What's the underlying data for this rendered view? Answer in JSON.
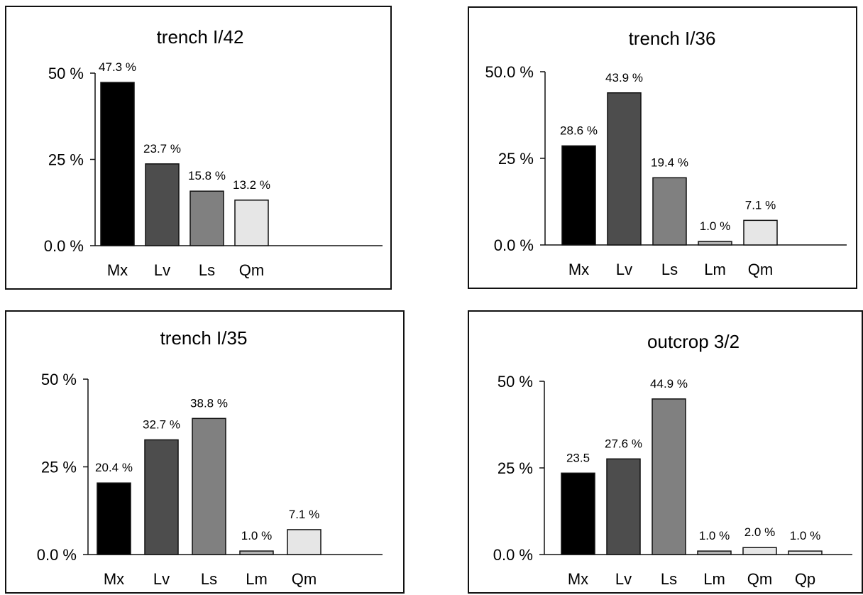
{
  "chart_data": [
    {
      "type": "bar",
      "title": "trench I/42",
      "categories": [
        "Mx",
        "Lv",
        "Ls",
        "Qm"
      ],
      "values": [
        47.3,
        23.7,
        15.8,
        13.2
      ],
      "value_labels": [
        "47.3 %",
        "23.7 %",
        "15.8 %",
        "13.2 %"
      ],
      "colors": [
        "#000000",
        "#4d4d4d",
        "#808080",
        "#e6e6e6"
      ],
      "yticks": [
        {
          "value": 0,
          "label": "0.0 %"
        },
        {
          "value": 25,
          "label": "25 %"
        },
        {
          "value": 50,
          "label": "50 %"
        }
      ],
      "ylim": [
        0,
        50
      ],
      "xlabel": "",
      "ylabel": "",
      "grid": false,
      "legend": "none"
    },
    {
      "type": "bar",
      "title": "trench I/36",
      "categories": [
        "Mx",
        "Lv",
        "Ls",
        "Lm",
        "Qm"
      ],
      "values": [
        28.6,
        43.9,
        19.4,
        1.0,
        7.1
      ],
      "value_labels": [
        "28.6 %",
        "43.9 %",
        "19.4 %",
        "1.0 %",
        "7.1 %"
      ],
      "colors": [
        "#000000",
        "#4d4d4d",
        "#808080",
        "#b3b3b3",
        "#e6e6e6"
      ],
      "yticks": [
        {
          "value": 0,
          "label": "0.0 %"
        },
        {
          "value": 25,
          "label": "25 %"
        },
        {
          "value": 50,
          "label": "50.0 %"
        }
      ],
      "ylim": [
        0,
        50
      ],
      "xlabel": "",
      "ylabel": "",
      "grid": false,
      "legend": "none"
    },
    {
      "type": "bar",
      "title": "trench I/35",
      "categories": [
        "Mx",
        "Lv",
        "Ls",
        "Lm",
        "Qm"
      ],
      "values": [
        20.4,
        32.7,
        38.8,
        1.0,
        7.1
      ],
      "value_labels": [
        "20.4 %",
        "32.7 %",
        "38.8 %",
        "1.0 %",
        "7.1 %"
      ],
      "colors": [
        "#000000",
        "#4d4d4d",
        "#808080",
        "#b3b3b3",
        "#e6e6e6"
      ],
      "yticks": [
        {
          "value": 0,
          "label": "0.0 %"
        },
        {
          "value": 25,
          "label": "25 %"
        },
        {
          "value": 50,
          "label": "50 %"
        }
      ],
      "ylim": [
        0,
        50
      ],
      "xlabel": "",
      "ylabel": "",
      "grid": false,
      "legend": "none"
    },
    {
      "type": "bar",
      "title": "outcrop 3/2",
      "categories": [
        "Mx",
        "Lv",
        "Ls",
        "Lm",
        "Qm",
        "Qp"
      ],
      "values": [
        23.5,
        27.6,
        44.9,
        1.0,
        2.0,
        1.0
      ],
      "value_labels": [
        "23.5",
        "27.6 %",
        "44.9 %",
        "1.0 %",
        "2.0 %",
        "1.0 %"
      ],
      "colors": [
        "#000000",
        "#4d4d4d",
        "#808080",
        "#b3b3b3",
        "#e6e6e6",
        "#e6e6e6"
      ],
      "yticks": [
        {
          "value": 0,
          "label": "0.0 %"
        },
        {
          "value": 25,
          "label": "25 %"
        },
        {
          "value": 50,
          "label": "50 %"
        }
      ],
      "ylim": [
        0,
        50
      ],
      "xlabel": "",
      "ylabel": "",
      "grid": false,
      "legend": "none"
    }
  ]
}
